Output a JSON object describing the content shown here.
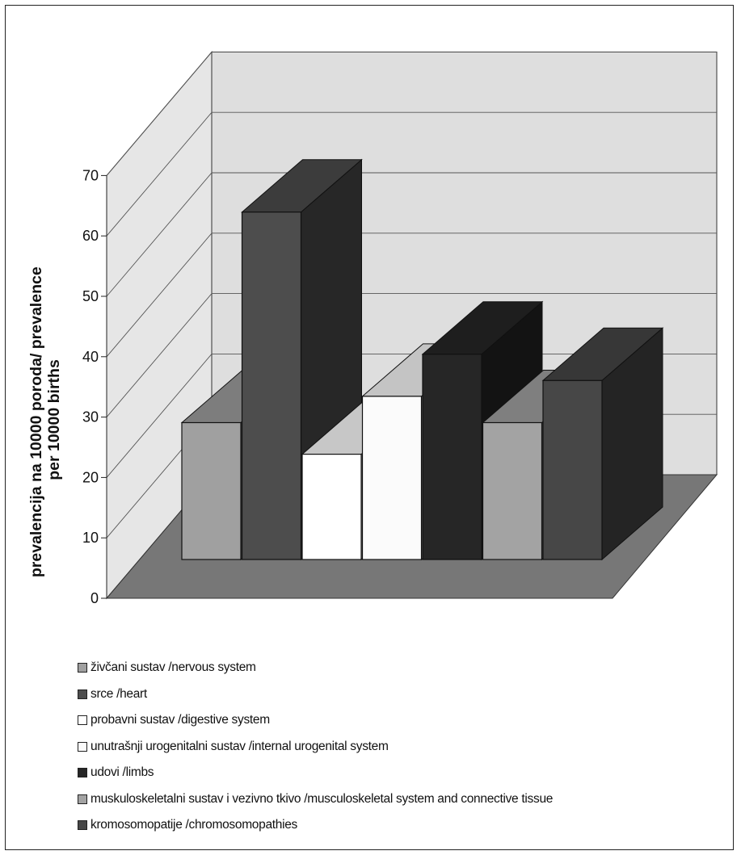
{
  "chart_data": {
    "type": "bar",
    "style": "3d-clustered",
    "ylabel_lines": [
      "prevalencija na 10000 poroda/ prevalence",
      "per 10000 births"
    ],
    "ylim": [
      0,
      70
    ],
    "yticks": [
      0,
      10,
      20,
      30,
      40,
      50,
      60,
      70
    ],
    "grid": true,
    "legend_position": "bottom",
    "groups": 3,
    "series": [
      {
        "name": "živčani sustav /nervous system",
        "group": 0,
        "value": 26,
        "color": "#a0a0a0"
      },
      {
        "name": "srce /heart",
        "group": 0,
        "value": 66,
        "color": "#4d4d4d"
      },
      {
        "name": "probavni sustav /digestive system",
        "group": 1,
        "value": 20,
        "color": "#ffffff"
      },
      {
        "name": "unutrašnji urogenitalni sustav /internal urogenital system",
        "group": 1,
        "value": 31,
        "color": "#fbfbfb"
      },
      {
        "name": "udovi /limbs",
        "group": 1,
        "value": 39,
        "color": "#262626"
      },
      {
        "name": "muskuloskeletalni sustav i vezivno tkivo /musculoskeletal system and connective tissue",
        "group": 2,
        "value": 26,
        "color": "#a3a3a3"
      },
      {
        "name": "kromosomopatije /chromosomopathies",
        "group": 2,
        "value": 34,
        "color": "#474747"
      }
    ]
  }
}
